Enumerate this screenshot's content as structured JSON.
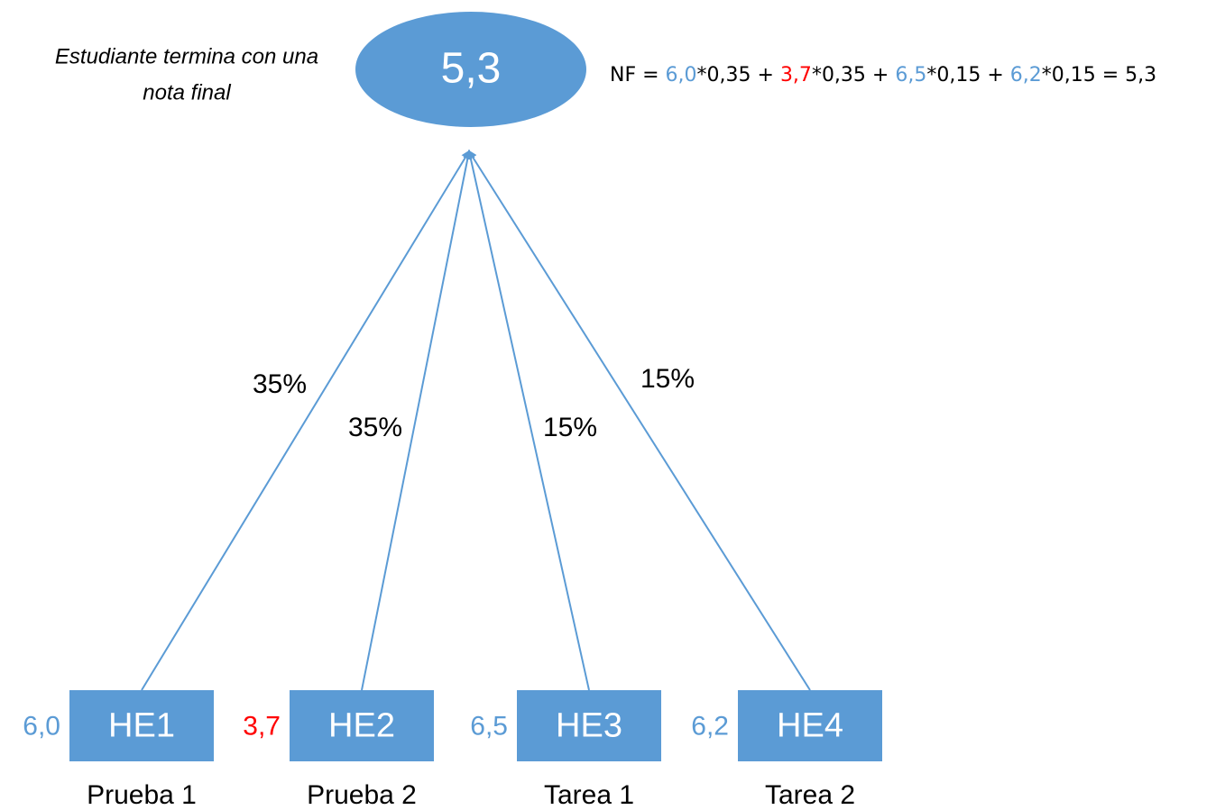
{
  "caption": {
    "lines": [
      "Estudiante termina con una",
      "nota final"
    ]
  },
  "result": {
    "label": "5,3"
  },
  "formula": {
    "parts": [
      {
        "text": "NF = ",
        "color": "#000000"
      },
      {
        "text": "6,0",
        "color": "#5b9bd5"
      },
      {
        "text": "*0,35 + ",
        "color": "#000000"
      },
      {
        "text": "3,7",
        "color": "#ff0000"
      },
      {
        "text": "*0,35 + ",
        "color": "#000000"
      },
      {
        "text": "6,5",
        "color": "#5b9bd5"
      },
      {
        "text": "*0,15 + ",
        "color": "#000000"
      },
      {
        "text": "6,2",
        "color": "#5b9bd5"
      },
      {
        "text": "*0,15 = 5,3",
        "color": "#000000"
      }
    ]
  },
  "nodes": [
    {
      "label": "HE1",
      "grade": "6,0",
      "grade_color": "#5b9bd5",
      "name": "Prueba 1",
      "weight": "35%"
    },
    {
      "label": "HE2",
      "grade": "3,7",
      "grade_color": "#ff0000",
      "name": "Prueba 2",
      "weight": "35%"
    },
    {
      "label": "HE3",
      "grade": "6,5",
      "grade_color": "#5b9bd5",
      "name": "Tarea 1",
      "weight": "15%"
    },
    {
      "label": "HE4",
      "grade": "6,2",
      "grade_color": "#5b9bd5",
      "name": "Tarea 2",
      "weight": "15%"
    }
  ]
}
